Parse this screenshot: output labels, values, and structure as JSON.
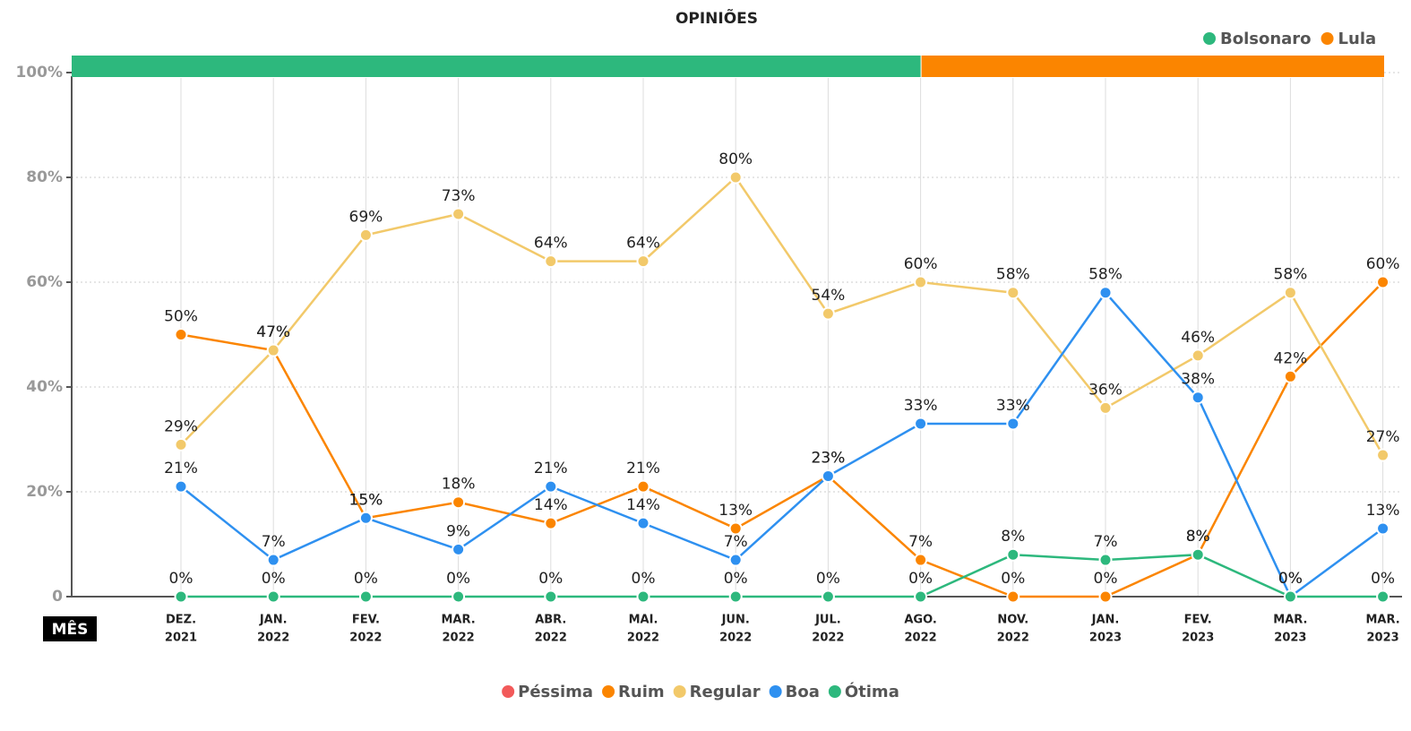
{
  "chart_data": {
    "type": "line",
    "title": "OPINIÕES",
    "x_label": "MÊS",
    "categories": [
      [
        "DEZ.",
        "2021"
      ],
      [
        "JAN.",
        "2022"
      ],
      [
        "FEV.",
        "2022"
      ],
      [
        "MAR.",
        "2022"
      ],
      [
        "ABR.",
        "2022"
      ],
      [
        "MAI.",
        "2022"
      ],
      [
        "JUN.",
        "2022"
      ],
      [
        "JUL.",
        "2022"
      ],
      [
        "AGO.",
        "2022"
      ],
      [
        "NOV.",
        "2022"
      ],
      [
        "JAN.",
        "2023"
      ],
      [
        "FEV.",
        "2023"
      ],
      [
        "MAR.",
        "2023"
      ],
      [
        "MAR.",
        "2023"
      ]
    ],
    "ylim": [
      0,
      100
    ],
    "yticks": [
      0,
      {
        "value": 20,
        "label": "20%"
      },
      {
        "value": 40,
        "label": "40%"
      },
      {
        "value": 60,
        "label": "60%"
      },
      {
        "value": 80,
        "label": "80%"
      },
      {
        "value": 100,
        "label": "100%"
      }
    ],
    "grid": true,
    "bands": [
      {
        "name": "Bolsonaro",
        "color": "#2db87d",
        "start": 0,
        "end": 8
      },
      {
        "name": "Lula",
        "color": "#fb8500",
        "start": 8,
        "end": 13
      }
    ],
    "series": [
      {
        "name": "Péssima",
        "color": "#f25a5a",
        "values": [
          null,
          null,
          null,
          null,
          null,
          null,
          null,
          null,
          null,
          null,
          null,
          null,
          null,
          null
        ],
        "value_labels": [
          null,
          null,
          null,
          null,
          null,
          null,
          null,
          null,
          null,
          null,
          null,
          null,
          null,
          null
        ]
      },
      {
        "name": "Ruim",
        "color": "#fb8500",
        "values": [
          50,
          47,
          15,
          18,
          14,
          21,
          13,
          23,
          7,
          0,
          0,
          8,
          42,
          60
        ],
        "value_labels": [
          "50%",
          "47%",
          "15%",
          "18%",
          "14%",
          "21%",
          "13%",
          "23%",
          "7%",
          "0%",
          "0%",
          "8%",
          "42%",
          "60%"
        ]
      },
      {
        "name": "Regular",
        "color": "#f2c96a",
        "values": [
          29,
          47,
          69,
          73,
          64,
          64,
          80,
          54,
          60,
          58,
          36,
          46,
          58,
          27
        ],
        "value_labels": [
          "29%",
          "47%",
          "69%",
          "73%",
          "64%",
          "64%",
          "80%",
          "54%",
          "60%",
          "58%",
          "36%",
          "46%",
          "58%",
          "27%"
        ]
      },
      {
        "name": "Boa",
        "color": "#2e90f0",
        "values": [
          21,
          7,
          15,
          9,
          21,
          14,
          7,
          23,
          33,
          33,
          58,
          38,
          0,
          13
        ],
        "value_labels": [
          "21%",
          "7%",
          "15%",
          "9%",
          "21%",
          "14%",
          "7%",
          "23%",
          "33%",
          "33%",
          "58%",
          "38%",
          "0%",
          "13%"
        ]
      },
      {
        "name": "Ótima",
        "color": "#2db87d",
        "values": [
          0,
          0,
          0,
          0,
          0,
          0,
          0,
          0,
          0,
          8,
          7,
          8,
          0,
          0
        ],
        "value_labels": [
          "0%",
          "0%",
          "0%",
          "0%",
          "0%",
          "0%",
          "0%",
          "0%",
          "0%",
          "8%",
          "7%",
          "8%",
          "0%",
          "0%"
        ]
      }
    ]
  }
}
